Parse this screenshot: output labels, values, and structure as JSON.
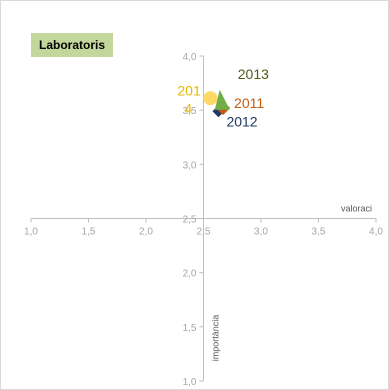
{
  "title": "Laboratoris",
  "chart_data": {
    "type": "scatter",
    "title": "Laboratoris",
    "xlabel": "valoraci",
    "ylabel": "importància",
    "xlim": [
      1.0,
      4.0
    ],
    "ylim": [
      1.0,
      4.0
    ],
    "axis_cross": [
      2.5,
      2.5
    ],
    "x_ticks": [
      "1,0",
      "1,5",
      "2,0",
      "2,5",
      "3,0",
      "3,5",
      "4,0"
    ],
    "y_ticks": [
      "1,0",
      "1,5",
      "2,0",
      "2,5",
      "3,0",
      "3,5",
      "4,0"
    ],
    "grid": false,
    "series": [
      {
        "name": "2011",
        "x": 2.67,
        "y": 3.52,
        "marker": "square",
        "color": "#c55a11",
        "label_color": "#c55a11"
      },
      {
        "name": "2012",
        "x": 2.63,
        "y": 3.49,
        "marker": "diamond",
        "color": "#1f3864",
        "label_color": "#1f3864"
      },
      {
        "name": "2013",
        "x": 2.65,
        "y": 3.55,
        "marker": "triangle",
        "color": "#70ad47",
        "label_color": "#4d5d16"
      },
      {
        "name": "2014",
        "x": 2.56,
        "y": 3.61,
        "marker": "circle",
        "color": "#ffd966",
        "label_color": "#e6b800"
      }
    ],
    "labels": [
      {
        "series": "2013",
        "text": "2013"
      },
      {
        "series": "2011",
        "text": "2011"
      },
      {
        "series": "2012",
        "text": "2012"
      },
      {
        "series": "2014",
        "text": "201"
      },
      {
        "series": "2014",
        "text": "4"
      }
    ]
  }
}
